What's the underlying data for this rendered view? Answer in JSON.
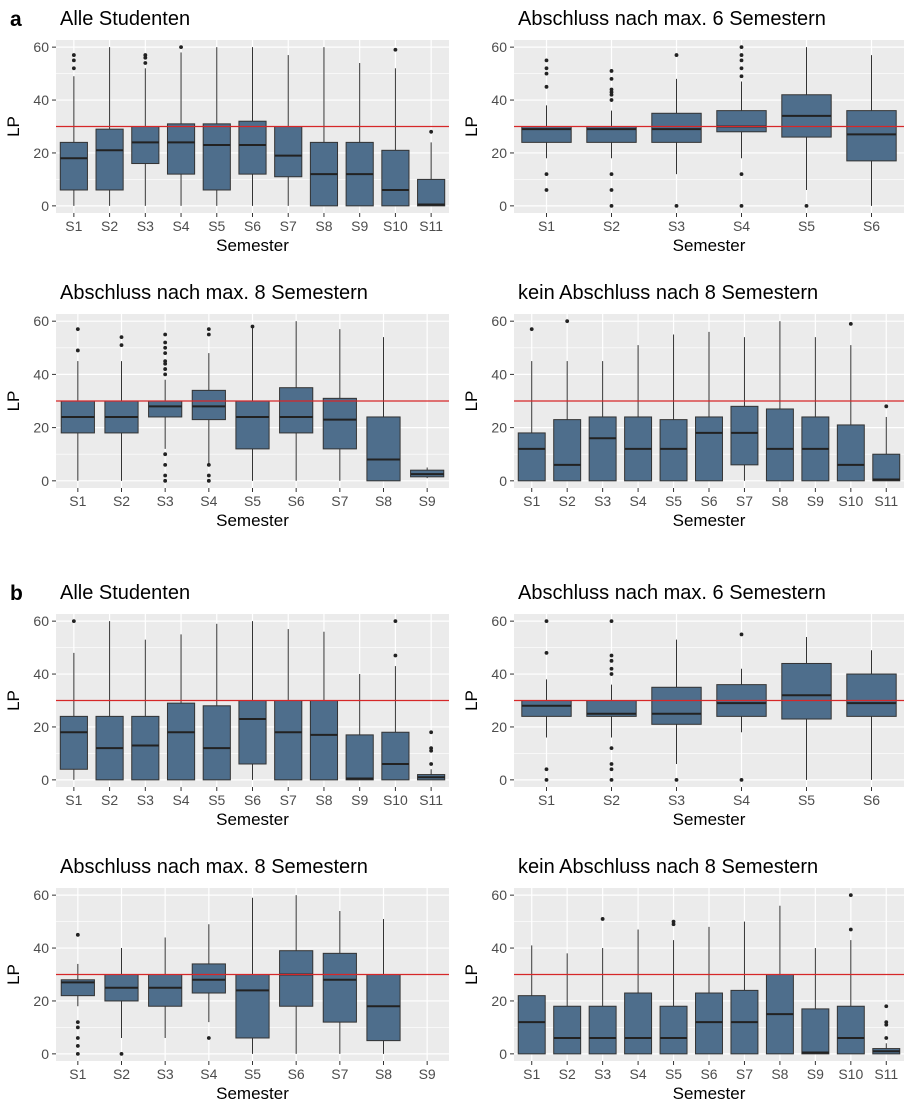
{
  "figure": {
    "panel_labels": [
      "a",
      "b"
    ],
    "reference_line": {
      "value": 30,
      "color": "#d62728"
    },
    "box_fill": "#4e6e8c",
    "panel_background": "#ebebeb"
  },
  "chart_data": [
    {
      "panel": "a",
      "type": "box",
      "title": "Alle Studenten",
      "xlabel": "Semester",
      "ylabel": "LP",
      "ylim": [
        0,
        60
      ],
      "yticks": [
        0,
        20,
        40,
        60
      ],
      "categories": [
        "S1",
        "S2",
        "S3",
        "S4",
        "S5",
        "S6",
        "S7",
        "S8",
        "S9",
        "S10",
        "S11"
      ],
      "boxes": [
        {
          "min": 0,
          "q1": 6,
          "median": 18,
          "q3": 24,
          "max": 49,
          "outliers": [
            52,
            55,
            57
          ]
        },
        {
          "min": 0,
          "q1": 6,
          "median": 21,
          "q3": 29,
          "max": 60,
          "outliers": []
        },
        {
          "min": 0,
          "q1": 16,
          "median": 24,
          "q3": 30,
          "max": 52,
          "outliers": [
            54,
            56,
            57
          ]
        },
        {
          "min": 0,
          "q1": 12,
          "median": 24,
          "q3": 31,
          "max": 58,
          "outliers": [
            60
          ]
        },
        {
          "min": 0,
          "q1": 6,
          "median": 23,
          "q3": 31,
          "max": 60,
          "outliers": []
        },
        {
          "min": 0,
          "q1": 12,
          "median": 23,
          "q3": 32,
          "max": 60,
          "outliers": []
        },
        {
          "min": 0,
          "q1": 11,
          "median": 19,
          "q3": 30,
          "max": 57,
          "outliers": []
        },
        {
          "min": 0,
          "q1": 0,
          "median": 12,
          "q3": 24,
          "max": 60,
          "outliers": []
        },
        {
          "min": 0,
          "q1": 0,
          "median": 12,
          "q3": 24,
          "max": 54,
          "outliers": []
        },
        {
          "min": 0,
          "q1": 0,
          "median": 6,
          "q3": 21,
          "max": 52,
          "outliers": [
            59
          ]
        },
        {
          "min": 0,
          "q1": 0,
          "median": 0.5,
          "q3": 10,
          "max": 24,
          "outliers": [
            28
          ]
        }
      ]
    },
    {
      "panel": "a",
      "type": "box",
      "title": "Abschluss nach max. 6 Semestern",
      "xlabel": "Semester",
      "ylabel": "LP",
      "ylim": [
        0,
        60
      ],
      "yticks": [
        0,
        20,
        40,
        60
      ],
      "categories": [
        "S1",
        "S2",
        "S3",
        "S4",
        "S5",
        "S6"
      ],
      "boxes": [
        {
          "min": 18,
          "q1": 24,
          "median": 29,
          "q3": 30,
          "max": 38,
          "outliers": [
            6,
            12,
            45,
            50,
            52,
            55
          ]
        },
        {
          "min": 18,
          "q1": 24,
          "median": 29,
          "q3": 30,
          "max": 36,
          "outliers": [
            0,
            6,
            12,
            40,
            42,
            43,
            44,
            48,
            51
          ]
        },
        {
          "min": 12,
          "q1": 24,
          "median": 29,
          "q3": 35,
          "max": 48,
          "outliers": [
            0,
            57
          ]
        },
        {
          "min": 18,
          "q1": 28,
          "median": 30,
          "q3": 36,
          "max": 47,
          "outliers": [
            0,
            12,
            49,
            52,
            55,
            57,
            60
          ]
        },
        {
          "min": 6,
          "q1": 26,
          "median": 34,
          "q3": 42,
          "max": 60,
          "outliers": [
            0
          ]
        },
        {
          "min": 0,
          "q1": 17,
          "median": 27,
          "q3": 36,
          "max": 57,
          "outliers": []
        }
      ]
    },
    {
      "panel": "a",
      "type": "box",
      "title": "Abschluss nach max. 8 Semestern",
      "xlabel": "Semester",
      "ylabel": "LP",
      "ylim": [
        0,
        60
      ],
      "yticks": [
        0,
        20,
        40,
        60
      ],
      "categories": [
        "S1",
        "S2",
        "S3",
        "S4",
        "S5",
        "S6",
        "S7",
        "S8",
        "S9"
      ],
      "boxes": [
        {
          "min": 0,
          "q1": 18,
          "median": 24,
          "q3": 30,
          "max": 45,
          "outliers": [
            49,
            57
          ]
        },
        {
          "min": 0,
          "q1": 18,
          "median": 24,
          "q3": 30,
          "max": 45,
          "outliers": [
            51,
            54
          ]
        },
        {
          "min": 12,
          "q1": 24,
          "median": 28,
          "q3": 30,
          "max": 38,
          "outliers": [
            0,
            2,
            6,
            10,
            40,
            42,
            44,
            45,
            48,
            50,
            52,
            55
          ]
        },
        {
          "min": 6,
          "q1": 23,
          "median": 28,
          "q3": 34,
          "max": 48,
          "outliers": [
            0,
            2,
            6,
            55,
            57
          ]
        },
        {
          "min": 0,
          "q1": 12,
          "median": 24,
          "q3": 30,
          "max": 58,
          "outliers": [
            58
          ]
        },
        {
          "min": 0,
          "q1": 18,
          "median": 24,
          "q3": 35,
          "max": 60,
          "outliers": []
        },
        {
          "min": 0,
          "q1": 12,
          "median": 23,
          "q3": 31,
          "max": 57,
          "outliers": []
        },
        {
          "min": 0,
          "q1": 0,
          "median": 8,
          "q3": 24,
          "max": 54,
          "outliers": []
        },
        {
          "min": 1,
          "q1": 1.5,
          "median": 2.5,
          "q3": 4,
          "max": 5,
          "outliers": []
        }
      ]
    },
    {
      "panel": "a",
      "type": "box",
      "title": "kein Abschluss nach 8 Semestern",
      "xlabel": "Semester",
      "ylabel": "LP",
      "ylim": [
        0,
        60
      ],
      "yticks": [
        0,
        20,
        40,
        60
      ],
      "categories": [
        "S1",
        "S2",
        "S3",
        "S4",
        "S5",
        "S6",
        "S7",
        "S8",
        "S9",
        "S10",
        "S11"
      ],
      "boxes": [
        {
          "min": 0,
          "q1": 0,
          "median": 12,
          "q3": 18,
          "max": 45,
          "outliers": [
            57
          ]
        },
        {
          "min": 0,
          "q1": 0,
          "median": 6,
          "q3": 23,
          "max": 45,
          "outliers": [
            60
          ]
        },
        {
          "min": 0,
          "q1": 0,
          "median": 16,
          "q3": 24,
          "max": 45,
          "outliers": []
        },
        {
          "min": 0,
          "q1": 0,
          "median": 12,
          "q3": 24,
          "max": 51,
          "outliers": []
        },
        {
          "min": 0,
          "q1": 0,
          "median": 12,
          "q3": 23,
          "max": 55,
          "outliers": []
        },
        {
          "min": 0,
          "q1": 0,
          "median": 18,
          "q3": 24,
          "max": 56,
          "outliers": []
        },
        {
          "min": 0,
          "q1": 6,
          "median": 18,
          "q3": 28,
          "max": 54,
          "outliers": []
        },
        {
          "min": 0,
          "q1": 0,
          "median": 12,
          "q3": 27,
          "max": 60,
          "outliers": []
        },
        {
          "min": 0,
          "q1": 0,
          "median": 12,
          "q3": 24,
          "max": 54,
          "outliers": []
        },
        {
          "min": 0,
          "q1": 0,
          "median": 6,
          "q3": 21,
          "max": 51,
          "outliers": [
            59
          ]
        },
        {
          "min": 0,
          "q1": 0,
          "median": 0.5,
          "q3": 10,
          "max": 24,
          "outliers": [
            28
          ]
        }
      ]
    },
    {
      "panel": "b",
      "type": "box",
      "title": "Alle Studenten",
      "xlabel": "Semester",
      "ylabel": "LP",
      "ylim": [
        0,
        60
      ],
      "yticks": [
        0,
        20,
        40,
        60
      ],
      "categories": [
        "S1",
        "S2",
        "S3",
        "S4",
        "S5",
        "S6",
        "S7",
        "S8",
        "S9",
        "S10",
        "S11"
      ],
      "boxes": [
        {
          "min": 0,
          "q1": 4,
          "median": 18,
          "q3": 24,
          "max": 48,
          "outliers": [
            60
          ]
        },
        {
          "min": 0,
          "q1": 0,
          "median": 12,
          "q3": 24,
          "max": 60,
          "outliers": []
        },
        {
          "min": 0,
          "q1": 0,
          "median": 13,
          "q3": 24,
          "max": 53,
          "outliers": []
        },
        {
          "min": 0,
          "q1": 0,
          "median": 18,
          "q3": 29,
          "max": 55,
          "outliers": []
        },
        {
          "min": 0,
          "q1": 0,
          "median": 12,
          "q3": 28,
          "max": 59,
          "outliers": []
        },
        {
          "min": 0,
          "q1": 6,
          "median": 23,
          "q3": 30,
          "max": 60,
          "outliers": []
        },
        {
          "min": 0,
          "q1": 0,
          "median": 18,
          "q3": 30,
          "max": 57,
          "outliers": []
        },
        {
          "min": 0,
          "q1": 0,
          "median": 17,
          "q3": 30,
          "max": 56,
          "outliers": []
        },
        {
          "min": 0,
          "q1": 0,
          "median": 0.5,
          "q3": 17,
          "max": 40,
          "outliers": []
        },
        {
          "min": 0,
          "q1": 0,
          "median": 6,
          "q3": 18,
          "max": 43,
          "outliers": [
            47,
            60
          ]
        },
        {
          "min": 0,
          "q1": 0,
          "median": 1,
          "q3": 2,
          "max": 4,
          "outliers": [
            6,
            11,
            12,
            18
          ]
        }
      ]
    },
    {
      "panel": "b",
      "type": "box",
      "title": "Abschluss nach max. 6 Semestern",
      "xlabel": "Semester",
      "ylabel": "LP",
      "ylim": [
        0,
        60
      ],
      "yticks": [
        0,
        20,
        40,
        60
      ],
      "categories": [
        "S1",
        "S2",
        "S3",
        "S4",
        "S5",
        "S6"
      ],
      "boxes": [
        {
          "min": 16,
          "q1": 24,
          "median": 28,
          "q3": 30,
          "max": 38,
          "outliers": [
            0,
            4,
            48,
            60
          ]
        },
        {
          "min": 16,
          "q1": 24,
          "median": 25,
          "q3": 30,
          "max": 36,
          "outliers": [
            0,
            4,
            6,
            12,
            40,
            42,
            45,
            47,
            60
          ]
        },
        {
          "min": 6,
          "q1": 21,
          "median": 25,
          "q3": 35,
          "max": 53,
          "outliers": [
            0
          ]
        },
        {
          "min": 18,
          "q1": 24,
          "median": 29,
          "q3": 36,
          "max": 42,
          "outliers": [
            0,
            55
          ]
        },
        {
          "min": 0,
          "q1": 23,
          "median": 32,
          "q3": 44,
          "max": 54,
          "outliers": []
        },
        {
          "min": 0,
          "q1": 24,
          "median": 29,
          "q3": 40,
          "max": 49,
          "outliers": []
        }
      ]
    },
    {
      "panel": "b",
      "type": "box",
      "title": "Abschluss nach max. 8 Semestern",
      "xlabel": "Semester",
      "ylabel": "LP",
      "ylim": [
        0,
        60
      ],
      "yticks": [
        0,
        20,
        40,
        60
      ],
      "categories": [
        "S1",
        "S2",
        "S3",
        "S4",
        "S5",
        "S6",
        "S7",
        "S8",
        "S9"
      ],
      "boxes": [
        {
          "min": 18,
          "q1": 22,
          "median": 27,
          "q3": 28,
          "max": 34,
          "outliers": [
            0,
            3,
            6,
            10,
            12,
            45
          ]
        },
        {
          "min": 6,
          "q1": 20,
          "median": 25,
          "q3": 30,
          "max": 40,
          "outliers": [
            0
          ]
        },
        {
          "min": 6,
          "q1": 18,
          "median": 25,
          "q3": 30,
          "max": 44,
          "outliers": []
        },
        {
          "min": 12,
          "q1": 23,
          "median": 28,
          "q3": 34,
          "max": 49,
          "outliers": [
            6
          ]
        },
        {
          "min": 0,
          "q1": 6,
          "median": 24,
          "q3": 30,
          "max": 59,
          "outliers": []
        },
        {
          "min": 0,
          "q1": 18,
          "median": 30,
          "q3": 39,
          "max": 60,
          "outliers": []
        },
        {
          "min": 0,
          "q1": 12,
          "median": 28,
          "q3": 38,
          "max": 54,
          "outliers": []
        },
        {
          "min": 0,
          "q1": 5,
          "median": 18,
          "q3": 30,
          "max": 51,
          "outliers": []
        },
        null
      ]
    },
    {
      "panel": "b",
      "type": "box",
      "title": "kein Abschluss nach 8 Semestern",
      "xlabel": "Semester",
      "ylabel": "LP",
      "ylim": [
        0,
        60
      ],
      "yticks": [
        0,
        20,
        40,
        60
      ],
      "categories": [
        "S1",
        "S2",
        "S3",
        "S4",
        "S5",
        "S6",
        "S7",
        "S8",
        "S9",
        "S10",
        "S11"
      ],
      "boxes": [
        {
          "min": 0,
          "q1": 0,
          "median": 12,
          "q3": 22,
          "max": 41,
          "outliers": []
        },
        {
          "min": 0,
          "q1": 0,
          "median": 6,
          "q3": 18,
          "max": 38,
          "outliers": []
        },
        {
          "min": 0,
          "q1": 0,
          "median": 6,
          "q3": 18,
          "max": 40,
          "outliers": [
            51
          ]
        },
        {
          "min": 0,
          "q1": 0,
          "median": 6,
          "q3": 23,
          "max": 47,
          "outliers": []
        },
        {
          "min": 0,
          "q1": 0,
          "median": 6,
          "q3": 18,
          "max": 43,
          "outliers": [
            49,
            50
          ]
        },
        {
          "min": 0,
          "q1": 0,
          "median": 12,
          "q3": 23,
          "max": 48,
          "outliers": []
        },
        {
          "min": 0,
          "q1": 0,
          "median": 12,
          "q3": 24,
          "max": 50,
          "outliers": []
        },
        {
          "min": 0,
          "q1": 0,
          "median": 15,
          "q3": 30,
          "max": 56,
          "outliers": []
        },
        {
          "min": 0,
          "q1": 0,
          "median": 0.5,
          "q3": 17,
          "max": 40,
          "outliers": []
        },
        {
          "min": 0,
          "q1": 0,
          "median": 6,
          "q3": 18,
          "max": 43,
          "outliers": [
            47,
            60
          ]
        },
        {
          "min": 0,
          "q1": 0,
          "median": 1,
          "q3": 2,
          "max": 4,
          "outliers": [
            6,
            11,
            12,
            18
          ]
        }
      ]
    }
  ]
}
